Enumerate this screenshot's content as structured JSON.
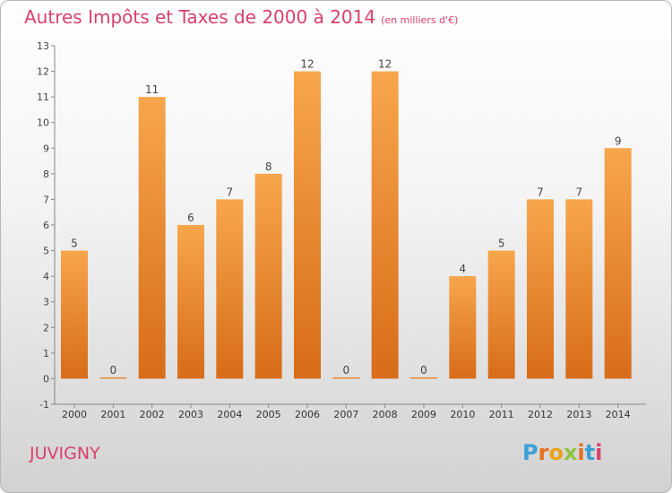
{
  "title": "Autres Impôts et Taxes de 2000 à 2014",
  "unit": "(en milliers d'€)",
  "commune": "JUVIGNY",
  "logo": {
    "text": "Proxiti",
    "letter_colors": [
      "#3aa0d8",
      "#e8701e",
      "#e8a318",
      "#8cc63f",
      "#e8701e",
      "#3aa0d8",
      "#d9406a"
    ]
  },
  "colors": {
    "bar": "#f08a30",
    "bar_light": "#f7a64c",
    "bar_dark": "#d86c18",
    "title": "#d9406a"
  },
  "chart_data": {
    "type": "bar",
    "categories": [
      "2000",
      "2001",
      "2002",
      "2003",
      "2004",
      "2005",
      "2006",
      "2007",
      "2008",
      "2009",
      "2010",
      "2011",
      "2012",
      "2013",
      "2014"
    ],
    "values": [
      5,
      0,
      11,
      6,
      7,
      8,
      12,
      0,
      12,
      0,
      4,
      5,
      7,
      7,
      9
    ],
    "ylim": [
      -1,
      13
    ],
    "yticks": [
      -1,
      0,
      1,
      2,
      3,
      4,
      5,
      6,
      7,
      8,
      9,
      10,
      11,
      12,
      13
    ],
    "grid": false,
    "data_labels": true
  }
}
